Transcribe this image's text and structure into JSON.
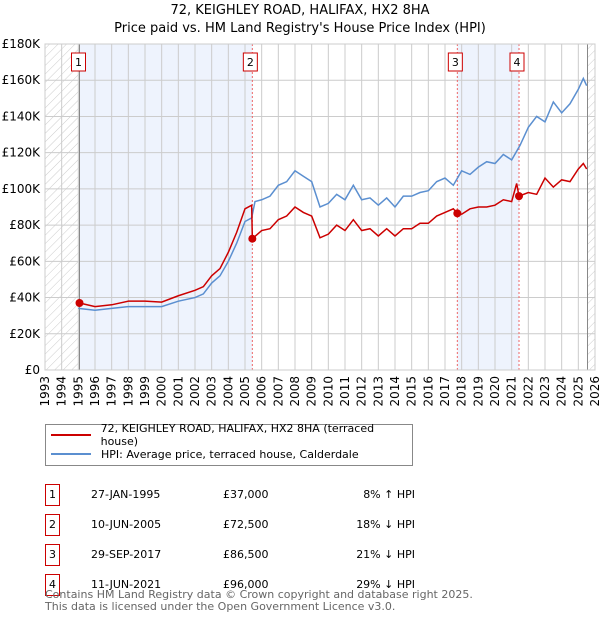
{
  "header": {
    "title": "72, KEIGHLEY ROAD, HALIFAX, HX2 8HA",
    "subtitle": "Price paid vs. HM Land Registry's House Price Index (HPI)"
  },
  "colors": {
    "price": "#cc0000",
    "hpi": "#5b8fd0",
    "shade": "#eef3fd"
  },
  "chart_data": {
    "type": "line",
    "title": "72, KEIGHLEY ROAD, HALIFAX, HX2 8HA — Price paid vs. HM Land Registry's House Price Index (HPI)",
    "xlim": [
      1993,
      2026
    ],
    "ylim": [
      0,
      180000
    ],
    "x_ticks": [
      "1993",
      "1994",
      "1995",
      "1996",
      "1997",
      "1998",
      "1999",
      "2000",
      "2001",
      "2002",
      "2003",
      "2004",
      "2005",
      "2006",
      "2007",
      "2008",
      "2009",
      "2010",
      "2011",
      "2012",
      "2013",
      "2014",
      "2015",
      "2016",
      "2017",
      "2018",
      "2019",
      "2020",
      "2021",
      "2022",
      "2023",
      "2024",
      "2025",
      "2026"
    ],
    "y_ticks": [
      {
        "v": 0,
        "label": "£0"
      },
      {
        "v": 20000,
        "label": "£20K"
      },
      {
        "v": 40000,
        "label": "£40K"
      },
      {
        "v": 60000,
        "label": "£60K"
      },
      {
        "v": 80000,
        "label": "£80K"
      },
      {
        "v": 100000,
        "label": "£100K"
      },
      {
        "v": 120000,
        "label": "£120K"
      },
      {
        "v": 140000,
        "label": "£140K"
      },
      {
        "v": 160000,
        "label": "£160K"
      },
      {
        "v": 180000,
        "label": "£180K"
      }
    ],
    "grid": true,
    "series": [
      {
        "name": "72, KEIGHLEY ROAD, HALIFAX, HX2 8HA (terraced house)",
        "x": [
          1995.07,
          1996,
          1997,
          1998,
          1999,
          2000,
          2001,
          2002,
          2002.5,
          2003,
          2003.5,
          2004,
          2004.5,
          2005,
          2005.4,
          2005.44,
          2006,
          2006.5,
          2007,
          2007.5,
          2008,
          2008.5,
          2009,
          2009.5,
          2010,
          2010.5,
          2011,
          2011.5,
          2012,
          2012.5,
          2013,
          2013.5,
          2014,
          2014.5,
          2015,
          2015.5,
          2016,
          2016.5,
          2017,
          2017.5,
          2017.74,
          2018,
          2018.5,
          2019,
          2019.5,
          2020,
          2020.5,
          2021,
          2021.3,
          2021.44,
          2022,
          2022.5,
          2023,
          2023.5,
          2024,
          2024.5,
          2025,
          2025.3,
          2025.5
        ],
        "values": [
          37000,
          35000,
          36000,
          38000,
          38000,
          37500,
          41000,
          44000,
          46000,
          52000,
          56000,
          65000,
          76000,
          89000,
          91000,
          72500,
          77000,
          78000,
          83000,
          85000,
          90000,
          87000,
          85000,
          73000,
          75000,
          80000,
          77000,
          83000,
          77000,
          78000,
          74000,
          78000,
          74000,
          78000,
          78000,
          81000,
          81000,
          85000,
          87000,
          89000,
          86500,
          86000,
          89000,
          90000,
          90000,
          91000,
          94000,
          93000,
          103000,
          96000,
          98000,
          97000,
          106000,
          101000,
          105000,
          104000,
          111000,
          114000,
          111000
        ]
      },
      {
        "name": "HPI: Average price, terraced house, Calderdale",
        "x": [
          1995,
          1996,
          1997,
          1998,
          1999,
          2000,
          2001,
          2002,
          2002.5,
          2003,
          2003.5,
          2004,
          2004.5,
          2005,
          2005.4,
          2005.6,
          2006,
          2006.5,
          2007,
          2007.5,
          2008,
          2008.5,
          2009,
          2009.5,
          2010,
          2010.5,
          2011,
          2011.5,
          2012,
          2012.5,
          2013,
          2013.5,
          2014,
          2014.5,
          2015,
          2015.5,
          2016,
          2016.5,
          2017,
          2017.5,
          2018,
          2018.5,
          2019,
          2019.5,
          2020,
          2020.5,
          2021,
          2021.5,
          2022,
          2022.5,
          2023,
          2023.5,
          2024,
          2024.5,
          2025,
          2025.3,
          2025.5
        ],
        "values": [
          34000,
          33000,
          34000,
          35000,
          35000,
          35000,
          38000,
          40000,
          42000,
          48000,
          52000,
          60000,
          70000,
          82000,
          84000,
          93000,
          94000,
          96000,
          102000,
          104000,
          110000,
          107000,
          104000,
          90000,
          92000,
          97000,
          94000,
          102000,
          94000,
          95000,
          91000,
          95000,
          90000,
          96000,
          96000,
          98000,
          99000,
          104000,
          106000,
          102000,
          110000,
          108000,
          112000,
          115000,
          114000,
          119000,
          116000,
          124000,
          134000,
          140000,
          137000,
          148000,
          142000,
          147000,
          155000,
          161000,
          157000
        ]
      }
    ],
    "sales": [
      {
        "n": "1",
        "x": 1995.07,
        "value": 37000
      },
      {
        "n": "2",
        "x": 2005.44,
        "value": 72500
      },
      {
        "n": "3",
        "x": 2017.74,
        "value": 86500
      },
      {
        "n": "4",
        "x": 2021.44,
        "value": 96000
      }
    ],
    "legend_placement": "below"
  },
  "legend": {
    "price": "72, KEIGHLEY ROAD, HALIFAX, HX2 8HA (terraced house)",
    "hpi": "HPI: Average price, terraced house, Calderdale"
  },
  "table": [
    {
      "n": "1",
      "date": "27-JAN-1995",
      "price": "£37,000",
      "hpi": "8% ↑ HPI"
    },
    {
      "n": "2",
      "date": "10-JUN-2005",
      "price": "£72,500",
      "hpi": "18% ↓ HPI"
    },
    {
      "n": "3",
      "date": "29-SEP-2017",
      "price": "£86,500",
      "hpi": "21% ↓ HPI"
    },
    {
      "n": "4",
      "date": "11-JUN-2021",
      "price": "£96,000",
      "hpi": "29% ↓ HPI"
    }
  ],
  "footer": {
    "line1": "Contains HM Land Registry data © Crown copyright and database right 2025.",
    "line2": "This data is licensed under the Open Government Licence v3.0."
  }
}
